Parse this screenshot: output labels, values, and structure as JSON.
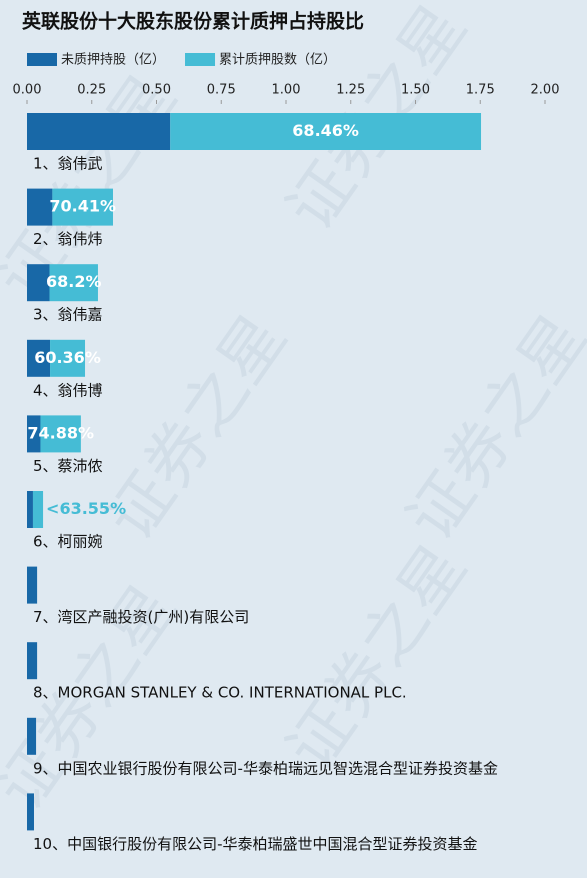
{
  "chart_data": {
    "type": "stacked-barh",
    "title": "英联股份十大股东股份累计质押占持股比",
    "watermark": "证券之星",
    "categories": [
      "1、翁伟武",
      "2、翁伟炜",
      "3、翁伟嘉",
      "4、翁伟博",
      "5、蔡沛侬",
      "6、柯丽婉",
      "7、湾区产融投资(广州)有限公司",
      "8、MORGAN STANLEY & CO. INTERNATIONAL PLC.",
      "9、中国农业银行股份有限公司-华泰柏瑞远见智选混合型证券投资基金",
      "10、中国银行股份有限公司-华泰柏瑞盛世中国混合型证券投资基金"
    ],
    "series": [
      {
        "name": "未质押持股（亿）",
        "color": "#1868a7",
        "values": [
          0.553,
          0.098,
          0.087,
          0.089,
          0.052,
          0.023,
          0.039,
          0.039,
          0.035,
          0.027
        ]
      },
      {
        "name": "累计质押股数（亿）",
        "color": "#45bcd5",
        "values": [
          1.2,
          0.234,
          0.187,
          0.135,
          0.156,
          0.039,
          null,
          null,
          null,
          null
        ],
        "ratios": [
          68.46,
          70.41,
          68.2,
          60.36,
          74.88,
          63.55,
          null,
          null,
          null,
          null
        ],
        "ratio_labels": [
          "68.46%",
          "70.41%",
          "68.2%",
          "60.36%",
          "74.88%",
          "<63.55%",
          null,
          null,
          null,
          null
        ]
      }
    ],
    "xlim": [
      0,
      2
    ],
    "xticks": [
      {
        "value": 0,
        "label": "0.00"
      },
      {
        "value": 0.25,
        "label": "0.25"
      },
      {
        "value": 0.5,
        "label": "0.50"
      },
      {
        "value": 0.75,
        "label": "0.75"
      },
      {
        "value": 1,
        "label": "1.00"
      },
      {
        "value": 1.25,
        "label": "1.25"
      },
      {
        "value": 1.5,
        "label": "1.50"
      },
      {
        "value": 1.75,
        "label": "1.75"
      },
      {
        "value": 2,
        "label": "2.00"
      }
    ],
    "legend": "top-left"
  }
}
